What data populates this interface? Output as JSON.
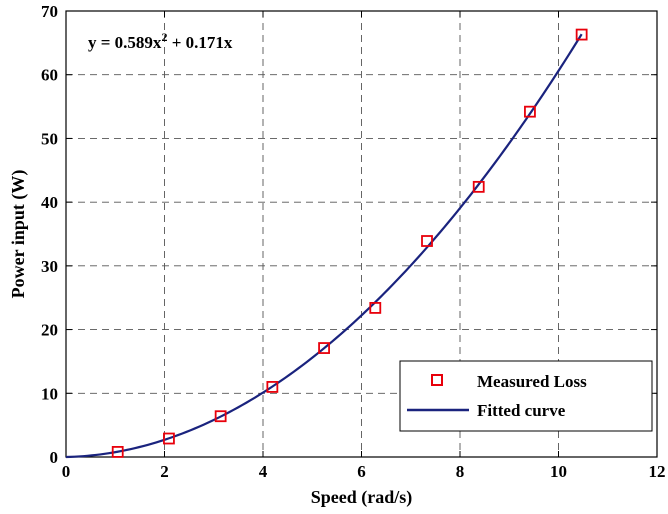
{
  "chart_data": {
    "type": "line",
    "title": "",
    "xlabel": "Speed (rad/s)",
    "ylabel": "Power input (W)",
    "xlim": [
      0,
      12
    ],
    "ylim": [
      0,
      70
    ],
    "xticks": [
      0,
      2,
      4,
      6,
      8,
      10,
      12
    ],
    "yticks": [
      0,
      10,
      20,
      30,
      40,
      50,
      60,
      70
    ],
    "grid": "dashed",
    "legend_position": "lower-right",
    "annotation": {
      "prefix": "y = 0.589x",
      "superscript": "2",
      "suffix": " + 0.171x"
    },
    "series": [
      {
        "name": "Measured Loss",
        "kind": "scatter",
        "marker": "square",
        "color": "#e8000b",
        "x": [
          1.05,
          2.09,
          3.14,
          4.19,
          5.24,
          6.28,
          7.33,
          8.38,
          9.42,
          10.47
        ],
        "y": [
          0.8,
          2.9,
          6.4,
          11.0,
          17.1,
          23.4,
          33.9,
          42.4,
          54.2,
          66.3
        ]
      },
      {
        "name": "Fitted curve",
        "kind": "line",
        "color": "#1a237e",
        "coefficients": {
          "a": 0.589,
          "b": 0.171
        },
        "x_range": [
          0,
          10.47
        ]
      }
    ]
  }
}
